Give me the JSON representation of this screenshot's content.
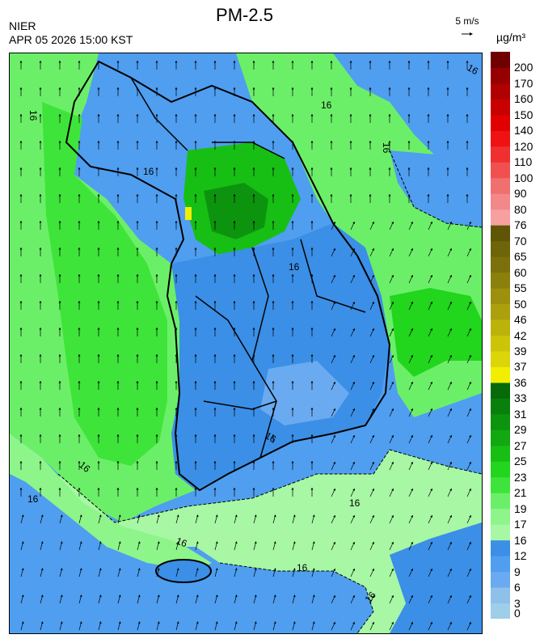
{
  "header": {
    "title": "PM-2.5",
    "agency": "NIER",
    "datetime": "APR 05 2026 15:00 KST",
    "wind_scale_label": "5 m/s",
    "unit": "µg/m³"
  },
  "map": {
    "variable": "PM-2.5 concentration",
    "region": "Korean Peninsula",
    "contour_labels": [
      "16",
      "16",
      "16",
      "16",
      "16",
      "16",
      "16",
      "16",
      "16",
      "16",
      "16",
      "16",
      "16"
    ],
    "wind_vectors": "southerly to south-westerly over land and sea"
  },
  "colorbar": {
    "ticks": [
      "200",
      "170",
      "160",
      "150",
      "140",
      "120",
      "110",
      "100",
      "90",
      "80",
      "76",
      "70",
      "65",
      "60",
      "55",
      "50",
      "46",
      "42",
      "39",
      "37",
      "36",
      "33",
      "31",
      "29",
      "27",
      "25",
      "23",
      "21",
      "19",
      "17",
      "16",
      "12",
      "9",
      "6",
      "3",
      "0"
    ],
    "bands": [
      {
        "lo": 0,
        "hi": 3,
        "color": "#9fcfe8"
      },
      {
        "lo": 3,
        "hi": 6,
        "color": "#8fc0ea"
      },
      {
        "lo": 6,
        "hi": 9,
        "color": "#6aaaf0"
      },
      {
        "lo": 9,
        "hi": 12,
        "color": "#4f9ef0"
      },
      {
        "lo": 12,
        "hi": 16,
        "color": "#3b8fe6"
      },
      {
        "lo": 16,
        "hi": 17,
        "color": "#a7f7a4"
      },
      {
        "lo": 17,
        "hi": 19,
        "color": "#8df58a"
      },
      {
        "lo": 19,
        "hi": 21,
        "color": "#6cef68"
      },
      {
        "lo": 21,
        "hi": 23,
        "color": "#3fe43a"
      },
      {
        "lo": 23,
        "hi": 25,
        "color": "#22d51d"
      },
      {
        "lo": 25,
        "hi": 27,
        "color": "#17bf14"
      },
      {
        "lo": 27,
        "hi": 29,
        "color": "#12a812"
      },
      {
        "lo": 29,
        "hi": 31,
        "color": "#0d940e"
      },
      {
        "lo": 31,
        "hi": 33,
        "color": "#0a800c"
      },
      {
        "lo": 33,
        "hi": 36,
        "color": "#066a0a"
      },
      {
        "lo": 36,
        "hi": 37,
        "color": "#f2ee00"
      },
      {
        "lo": 37,
        "hi": 39,
        "color": "#dcd50a"
      },
      {
        "lo": 39,
        "hi": 42,
        "color": "#ccc408"
      },
      {
        "lo": 42,
        "hi": 46,
        "color": "#bcb30a"
      },
      {
        "lo": 46,
        "hi": 50,
        "color": "#aca10c"
      },
      {
        "lo": 50,
        "hi": 55,
        "color": "#9c900c"
      },
      {
        "lo": 55,
        "hi": 60,
        "color": "#8c800c"
      },
      {
        "lo": 60,
        "hi": 65,
        "color": "#7c700c"
      },
      {
        "lo": 65,
        "hi": 70,
        "color": "#6e6409"
      },
      {
        "lo": 70,
        "hi": 76,
        "color": "#5e5606"
      },
      {
        "lo": 76,
        "hi": 80,
        "color": "#f7a0a0"
      },
      {
        "lo": 80,
        "hi": 90,
        "color": "#f38888"
      },
      {
        "lo": 90,
        "hi": 100,
        "color": "#f06f6f"
      },
      {
        "lo": 100,
        "hi": 110,
        "color": "#f05050"
      },
      {
        "lo": 110,
        "hi": 120,
        "color": "#f03030"
      },
      {
        "lo": 120,
        "hi": 140,
        "color": "#f01212"
      },
      {
        "lo": 140,
        "hi": 150,
        "color": "#e00000"
      },
      {
        "lo": 150,
        "hi": 160,
        "color": "#c80000"
      },
      {
        "lo": 160,
        "hi": 170,
        "color": "#b00000"
      },
      {
        "lo": 170,
        "hi": 200,
        "color": "#960000"
      },
      {
        "lo": 200,
        "hi": 999,
        "color": "#700000"
      }
    ]
  }
}
